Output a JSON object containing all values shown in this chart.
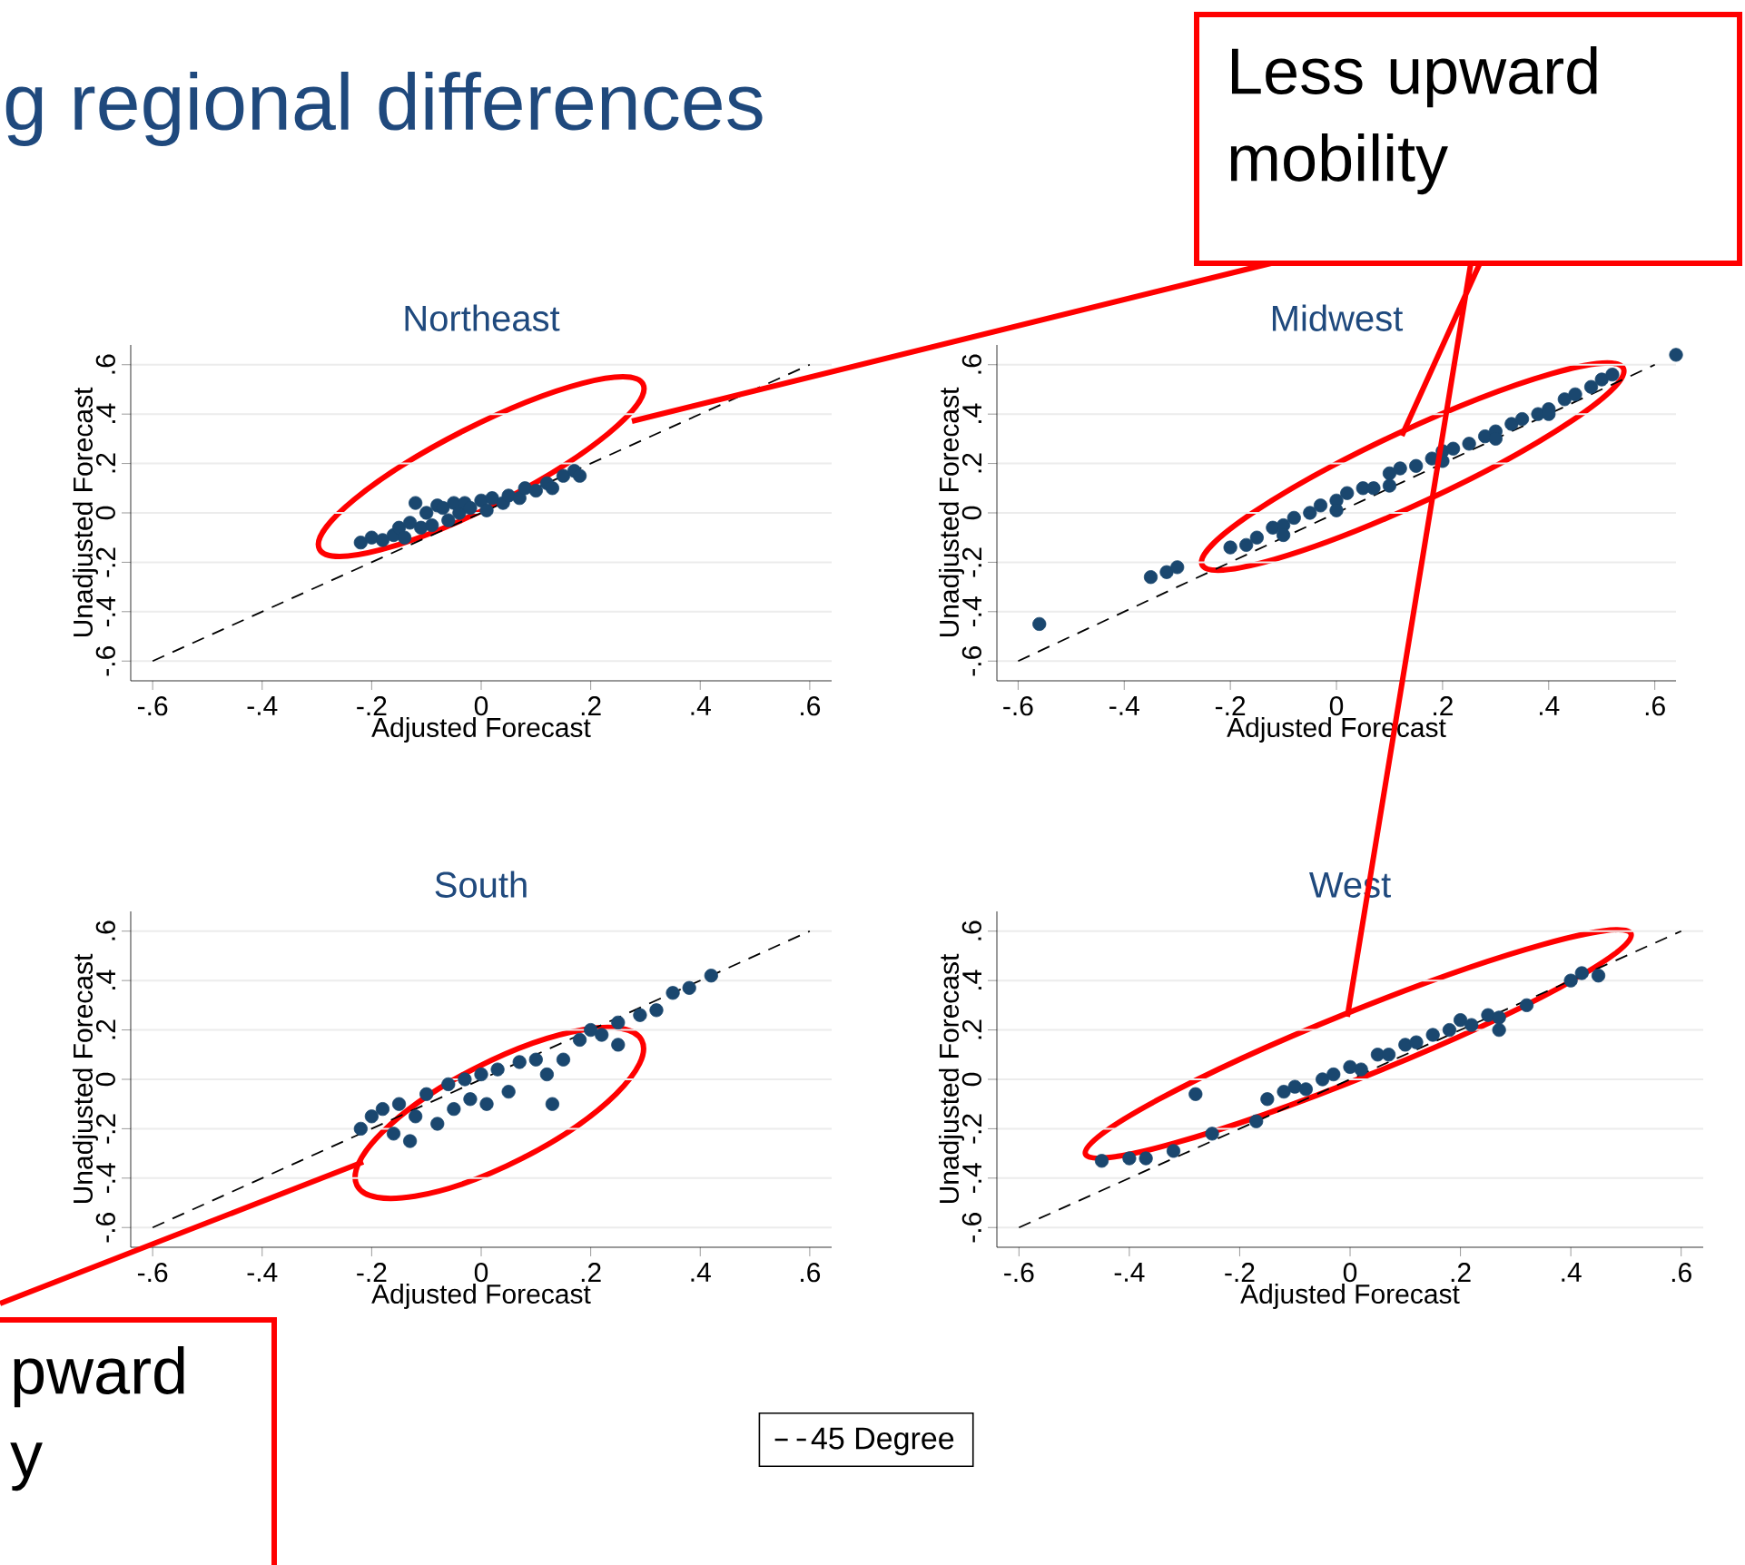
{
  "chart_data": [
    {
      "type": "scatter",
      "title": "Northeast",
      "xlabel": "Adjusted Forecast",
      "ylabel": "Unadjusted Forecast",
      "xlim": [
        -0.64,
        0.64
      ],
      "ylim": [
        -0.68,
        0.68
      ],
      "xticks": [
        {
          "value": -0.6,
          "label": "-.6"
        },
        {
          "value": -0.4,
          "label": "-.4"
        },
        {
          "value": -0.2,
          "label": "-.2"
        },
        0,
        {
          "value": 0.2,
          "label": ".2"
        },
        {
          "value": 0.4,
          "label": ".4"
        },
        {
          "value": 0.6,
          "label": ".6"
        }
      ],
      "yticks": [
        {
          "value": -0.6,
          "label": "-.6"
        },
        {
          "value": -0.4,
          "label": "-.4"
        },
        {
          "value": -0.2,
          "label": "-.2"
        },
        0,
        {
          "value": 0.2,
          "label": ".2"
        },
        {
          "value": 0.4,
          "label": ".4"
        },
        {
          "value": 0.6,
          "label": ".6"
        }
      ],
      "grid": "y",
      "marker": "circle",
      "annotations": [
        "g regional differences"
      ],
      "series": [
        {
          "color": "#1a476f",
          "x": [
            -0.22,
            -0.2,
            -0.18,
            -0.16,
            -0.15,
            -0.14,
            -0.13,
            -0.12,
            -0.11,
            -0.1,
            -0.09,
            -0.08,
            -0.07,
            -0.06,
            -0.05,
            -0.04,
            -0.03,
            -0.02,
            0.0,
            0.01,
            0.02,
            0.04,
            0.05,
            0.07,
            0.08,
            0.1,
            0.12,
            0.13,
            0.15,
            0.17,
            0.18
          ],
          "values": [
            -0.12,
            -0.1,
            -0.11,
            -0.09,
            -0.06,
            -0.1,
            -0.04,
            0.04,
            -0.06,
            0.0,
            -0.05,
            0.03,
            0.02,
            -0.03,
            0.04,
            0.0,
            0.04,
            0.02,
            0.05,
            0.01,
            0.06,
            0.04,
            0.07,
            0.06,
            0.1,
            0.09,
            0.12,
            0.1,
            0.15,
            0.17,
            0.15
          ]
        },
        {
          "type": "line",
          "color": "#000000",
          "line_style": "dashed",
          "marker": "none",
          "x": [
            -0.6,
            0.6
          ],
          "values": [
            -0.6,
            0.6
          ]
        }
      ]
    },
    {
      "type": "scatter",
      "title": "Midwest",
      "xlabel": "Adjusted Forecast",
      "ylabel": "Unadjusted Forecast",
      "xlim": [
        -0.64,
        0.64
      ],
      "ylim": [
        -0.68,
        0.68
      ],
      "xticks": [
        {
          "value": -0.6,
          "label": "-.6"
        },
        {
          "value": -0.4,
          "label": "-.4"
        },
        {
          "value": -0.2,
          "label": "-.2"
        },
        0,
        {
          "value": 0.2,
          "label": ".2"
        },
        {
          "value": 0.4,
          "label": ".4"
        },
        {
          "value": 0.6,
          "label": ".6"
        }
      ],
      "yticks": [
        {
          "value": -0.6,
          "label": "-.6"
        },
        {
          "value": -0.4,
          "label": "-.4"
        },
        {
          "value": -0.2,
          "label": "-.2"
        },
        0,
        {
          "value": 0.2,
          "label": ".2"
        },
        {
          "value": 0.4,
          "label": ".4"
        },
        {
          "value": 0.6,
          "label": ".6"
        }
      ],
      "grid": "y",
      "marker": "circle",
      "annotations": [
        "Less upward mobility"
      ],
      "series": [
        {
          "color": "#1a476f",
          "x": [
            -0.56,
            -0.35,
            -0.32,
            -0.3,
            -0.2,
            -0.17,
            -0.15,
            -0.12,
            -0.1,
            -0.1,
            -0.08,
            -0.05,
            -0.03,
            0.0,
            0.0,
            0.02,
            0.05,
            0.07,
            0.1,
            0.1,
            0.12,
            0.15,
            0.18,
            0.2,
            0.2,
            0.22,
            0.25,
            0.28,
            0.3,
            0.3,
            0.33,
            0.35,
            0.38,
            0.4,
            0.4,
            0.43,
            0.45,
            0.48,
            0.5,
            0.52,
            0.64
          ],
          "values": [
            -0.45,
            -0.26,
            -0.24,
            -0.22,
            -0.14,
            -0.13,
            -0.1,
            -0.06,
            -0.05,
            -0.09,
            -0.02,
            0.0,
            0.03,
            0.05,
            0.01,
            0.08,
            0.1,
            0.1,
            0.16,
            0.11,
            0.18,
            0.19,
            0.22,
            0.25,
            0.21,
            0.26,
            0.28,
            0.31,
            0.33,
            0.3,
            0.36,
            0.38,
            0.4,
            0.42,
            0.4,
            0.46,
            0.48,
            0.51,
            0.54,
            0.56,
            0.64
          ]
        },
        {
          "type": "line",
          "color": "#000000",
          "line_style": "dashed",
          "marker": "none",
          "x": [
            -0.6,
            0.6
          ],
          "values": [
            -0.6,
            0.6
          ]
        }
      ]
    },
    {
      "type": "scatter",
      "title": "South",
      "xlabel": "Adjusted Forecast",
      "ylabel": "Unadjusted Forecast",
      "xlim": [
        -0.64,
        0.64
      ],
      "ylim": [
        -0.68,
        0.68
      ],
      "xticks": [
        {
          "value": -0.6,
          "label": "-.6"
        },
        {
          "value": -0.4,
          "label": "-.4"
        },
        {
          "value": -0.2,
          "label": "-.2"
        },
        0,
        {
          "value": 0.2,
          "label": ".2"
        },
        {
          "value": 0.4,
          "label": ".4"
        },
        {
          "value": 0.6,
          "label": ".6"
        }
      ],
      "yticks": [
        {
          "value": -0.6,
          "label": "-.6"
        },
        {
          "value": -0.4,
          "label": "-.4"
        },
        {
          "value": -0.2,
          "label": "-.2"
        },
        0,
        {
          "value": 0.2,
          "label": ".2"
        },
        {
          "value": 0.4,
          "label": ".4"
        },
        {
          "value": 0.6,
          "label": ".6"
        }
      ],
      "grid": "y",
      "marker": "circle",
      "annotations": [
        "pward y"
      ],
      "series": [
        {
          "color": "#1a476f",
          "x": [
            -0.22,
            -0.2,
            -0.18,
            -0.16,
            -0.15,
            -0.13,
            -0.12,
            -0.1,
            -0.08,
            -0.06,
            -0.05,
            -0.03,
            -0.02,
            0.0,
            0.01,
            0.03,
            0.05,
            0.07,
            0.1,
            0.12,
            0.13,
            0.15,
            0.18,
            0.2,
            0.22,
            0.25,
            0.25,
            0.29,
            0.32,
            0.35,
            0.38,
            0.42
          ],
          "values": [
            -0.2,
            -0.15,
            -0.12,
            -0.22,
            -0.1,
            -0.25,
            -0.15,
            -0.06,
            -0.18,
            -0.02,
            -0.12,
            0.0,
            -0.08,
            0.02,
            -0.1,
            0.04,
            -0.05,
            0.07,
            0.08,
            0.02,
            -0.1,
            0.08,
            0.16,
            0.2,
            0.18,
            0.14,
            0.23,
            0.26,
            0.28,
            0.35,
            0.37,
            0.42
          ]
        },
        {
          "type": "line",
          "color": "#000000",
          "line_style": "dashed",
          "marker": "none",
          "x": [
            -0.6,
            0.6
          ],
          "values": [
            -0.6,
            0.6
          ]
        }
      ]
    },
    {
      "type": "scatter",
      "title": "West",
      "xlabel": "Adjusted Forecast",
      "ylabel": "Unadjusted Forecast",
      "xlim": [
        -0.64,
        0.64
      ],
      "ylim": [
        -0.68,
        0.68
      ],
      "xticks": [
        {
          "value": -0.6,
          "label": "-.6"
        },
        {
          "value": -0.4,
          "label": "-.4"
        },
        {
          "value": -0.2,
          "label": "-.2"
        },
        0,
        {
          "value": 0.2,
          "label": ".2"
        },
        {
          "value": 0.4,
          "label": ".4"
        },
        {
          "value": 0.6,
          "label": ".6"
        }
      ],
      "yticks": [
        {
          "value": -0.6,
          "label": "-.6"
        },
        {
          "value": -0.4,
          "label": "-.4"
        },
        {
          "value": -0.2,
          "label": "-.2"
        },
        0,
        {
          "value": 0.2,
          "label": ".2"
        },
        {
          "value": 0.4,
          "label": ".4"
        },
        {
          "value": 0.6,
          "label": ".6"
        }
      ],
      "grid": "y",
      "marker": "circle",
      "legend": "bottom",
      "series": [
        {
          "color": "#1a476f",
          "x": [
            -0.45,
            -0.4,
            -0.37,
            -0.32,
            -0.28,
            -0.25,
            -0.17,
            -0.15,
            -0.12,
            -0.1,
            -0.08,
            -0.05,
            -0.03,
            0.0,
            0.02,
            0.05,
            0.07,
            0.1,
            0.12,
            0.15,
            0.18,
            0.2,
            0.22,
            0.25,
            0.27,
            0.27,
            0.32,
            0.4,
            0.42,
            0.45
          ],
          "values": [
            -0.33,
            -0.32,
            -0.32,
            -0.29,
            -0.06,
            -0.22,
            -0.17,
            -0.08,
            -0.05,
            -0.03,
            -0.04,
            0.0,
            0.02,
            0.05,
            0.04,
            0.1,
            0.1,
            0.14,
            0.15,
            0.18,
            0.2,
            0.24,
            0.22,
            0.26,
            0.25,
            0.2,
            0.3,
            0.4,
            0.43,
            0.42
          ]
        },
        {
          "type": "line",
          "name": "45 Degree",
          "color": "#000000",
          "line_style": "dashed",
          "marker": "none",
          "x": [
            -0.6,
            0.6
          ],
          "values": [
            -0.6,
            0.6
          ]
        }
      ]
    }
  ]
}
